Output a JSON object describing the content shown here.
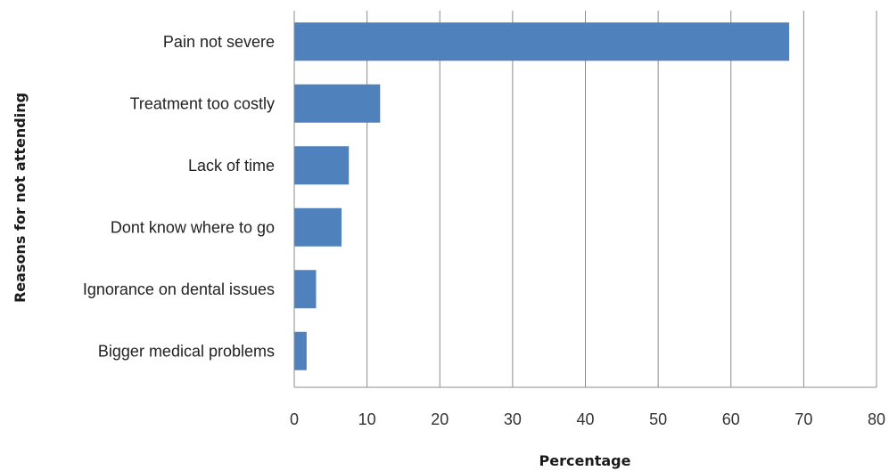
{
  "chart_data": {
    "type": "bar",
    "orientation": "horizontal",
    "categories": [
      "Pain not severe",
      "Treatment too costly",
      "Lack of time",
      "Dont know where to go",
      "Ignorance on dental issues",
      "Bigger medical problems"
    ],
    "values": [
      68,
      11.8,
      7.5,
      6.5,
      3.0,
      1.7
    ],
    "xlabel": "Percentage",
    "ylabel": "Reasons for not attending",
    "xlim": [
      0,
      80
    ],
    "xticks": [
      "0",
      "10",
      "20",
      "30",
      "40",
      "50",
      "60",
      "70",
      "80"
    ],
    "grid": "vertical",
    "bar_color": "#4f81bd",
    "grid_color": "#8c8c8c"
  }
}
